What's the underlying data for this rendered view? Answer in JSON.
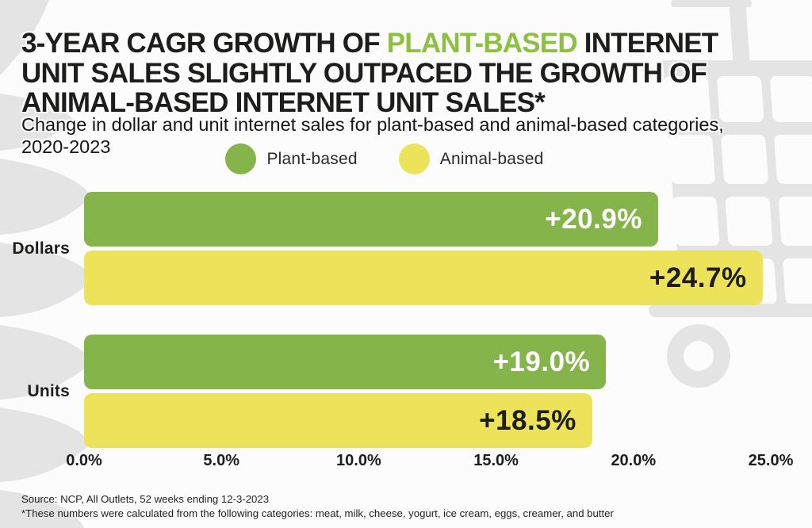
{
  "page": {
    "background": "#fcfcfc",
    "decoration_gray": "#e4e4e4"
  },
  "header": {
    "title_line1_pre": "3-YEAR CAGR GROWTH OF ",
    "title_line1_highlight": "PLANT-BASED",
    "title_line1_post": " INTERNET",
    "title_line2": "UNIT SALES SLIGHTLY OUTPACED THE GROWTH OF",
    "title_line3": "ANIMAL-BASED INTERNET UNIT SALES*",
    "highlight_color": "#8cc140",
    "subtitle_line1": "Change in dollar and unit internet sales for plant-based and animal-based categories,",
    "subtitle_line2": "2020-2023"
  },
  "legend": {
    "items": [
      {
        "label": "Plant-based",
        "color": "#85b44a"
      },
      {
        "label": "Animal-based",
        "color": "#ece35b"
      }
    ]
  },
  "chart_data": {
    "type": "bar",
    "orientation": "horizontal",
    "title": "3-year CAGR growth of plant-based vs animal-based internet unit sales",
    "categories": [
      "Dollars",
      "Units"
    ],
    "series": [
      {
        "name": "Plant-based",
        "color": "#85b44a",
        "values": [
          20.9,
          19.0
        ],
        "data_labels": [
          "+20.9%",
          "+19.0%"
        ],
        "label_color": "#ffffff"
      },
      {
        "name": "Animal-based",
        "color": "#ece35b",
        "values": [
          24.7,
          18.5
        ],
        "data_labels": [
          "+24.7%",
          "+18.5%"
        ],
        "label_color": "#1d1d1b"
      }
    ],
    "xlim": [
      0,
      25
    ],
    "xticks": [
      0,
      5,
      10,
      15,
      20,
      25
    ],
    "xtick_labels": [
      "0.0%",
      "5.0%",
      "10.0%",
      "15.0%",
      "20.0%",
      "25.0%"
    ],
    "grid": false,
    "legend_position": "top"
  },
  "footer": {
    "source": "Source: NCP, All Outlets, 52 weeks ending 12-3-2023",
    "footnote": "*These numbers were calculated from the following categories: meat, milk, cheese, yogurt, ice cream, eggs, creamer, and butter"
  }
}
